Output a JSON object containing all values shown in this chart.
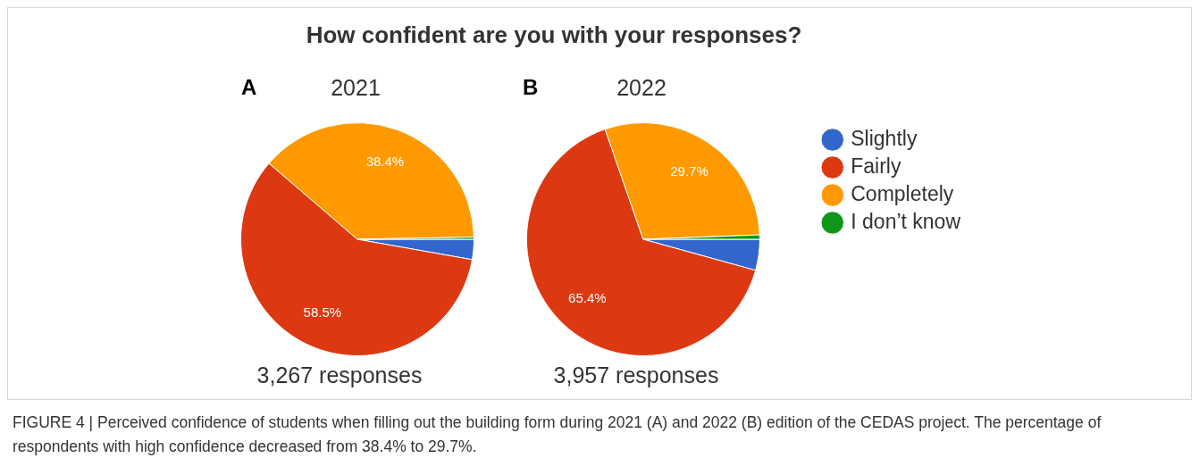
{
  "chart_data": [
    {
      "type": "pie",
      "title": "How confident are you with your responses?",
      "subtitle": "2021",
      "categories": [
        null,
        null,
        null,
        null
      ],
      "values": [
        2.8,
        58.5,
        38.4,
        0.3
      ],
      "colors": [
        "#3366cc",
        "#dc3912",
        "#ff9900",
        "#109618"
      ],
      "value_labels": [
        null,
        "58.5%",
        "38.4%",
        null
      ],
      "legend": false,
      "annotations": [
        "A",
        "3,267 responses"
      ]
    },
    {
      "type": "pie",
      "subtitle": "2022",
      "categories": [
        "Slightly",
        "Fairly",
        "Completely",
        "I don’t know"
      ],
      "values": [
        4.3,
        65.4,
        29.7,
        0.6
      ],
      "colors": [
        "#3366cc",
        "#dc3912",
        "#ff9900",
        "#109618"
      ],
      "value_labels": [
        null,
        "65.4%",
        "29.7%",
        null
      ],
      "legend": "right",
      "annotations": [
        "B",
        "3,957 responses",
        "FIGURE 4 | Perceived confidence of students when filling out the building form during 2021 (A) and 2022 (B) edition of the CEDAS project. The percentage of respondents with high confidence decreased from 38.4% to 29.7%."
      ]
    }
  ]
}
